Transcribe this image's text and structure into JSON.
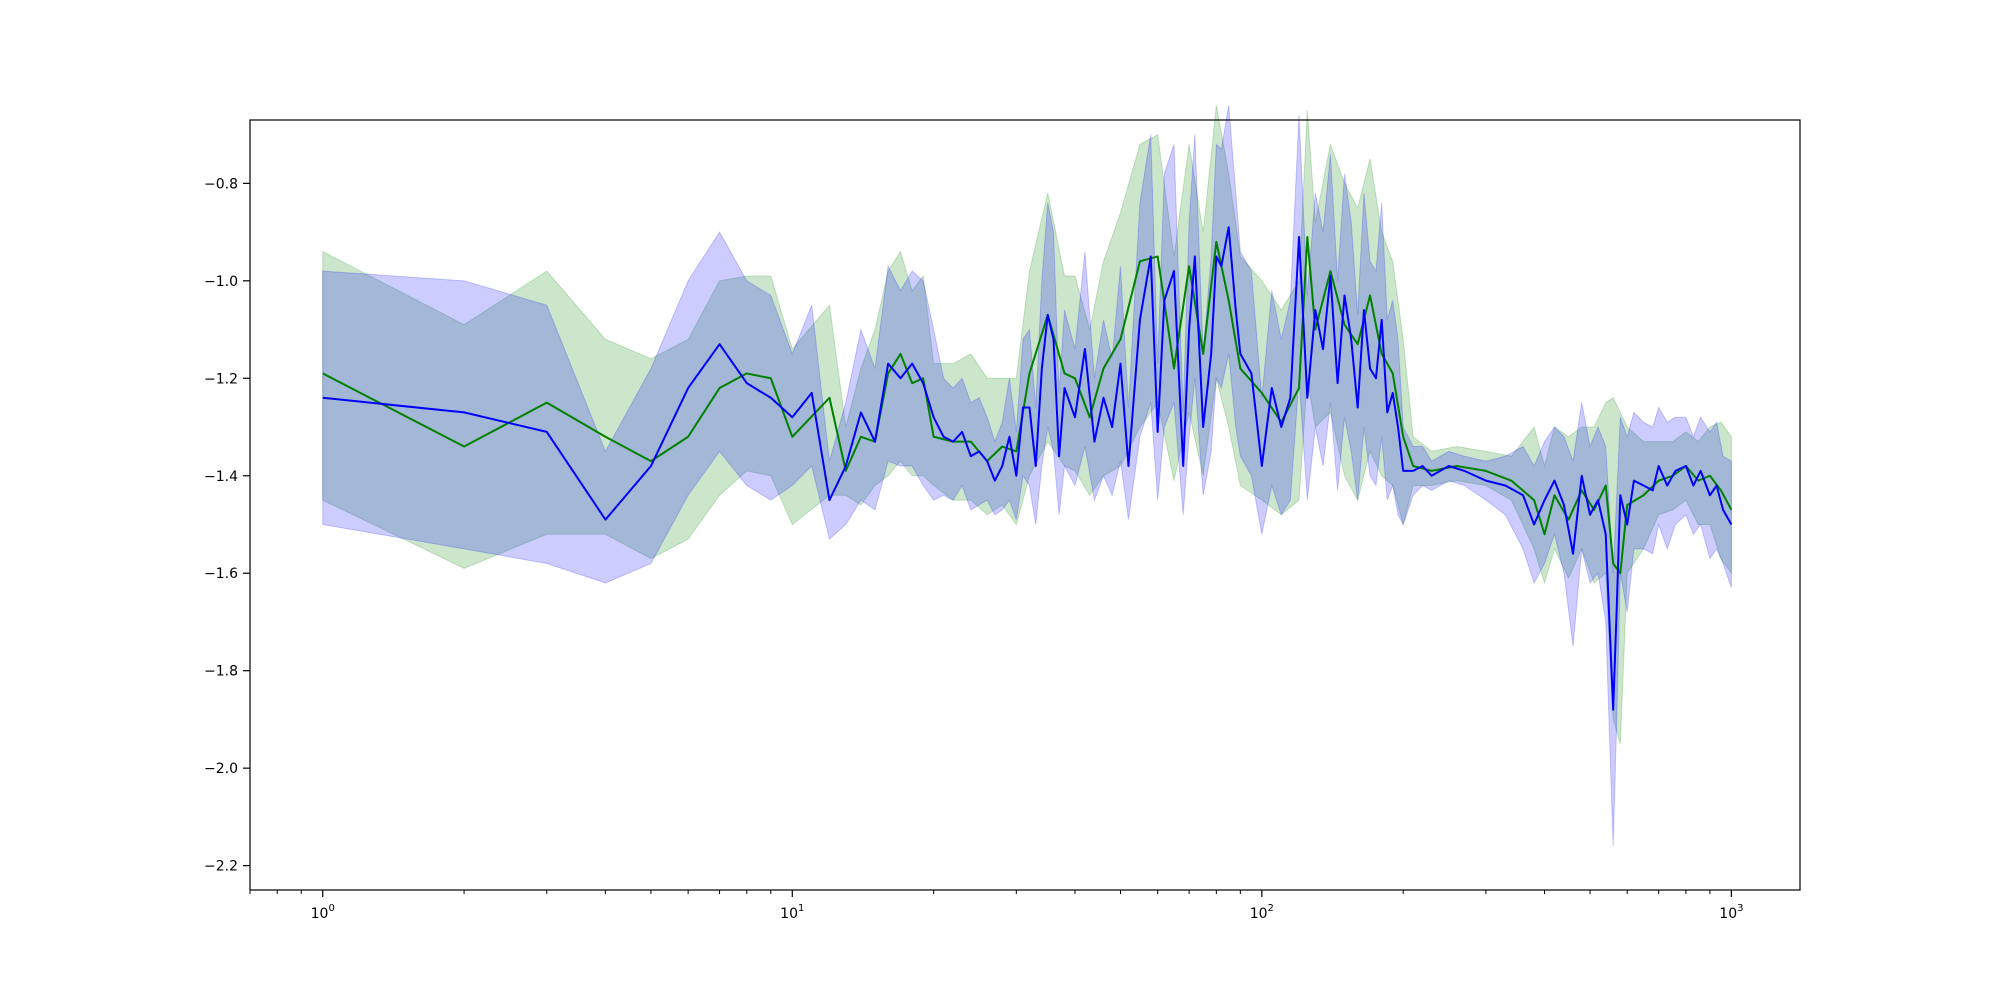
{
  "chart_data": {
    "type": "line",
    "title": "",
    "xlabel": "",
    "ylabel": "",
    "xscale": "log",
    "xlim": [
      0.7,
      1400
    ],
    "ylim": [
      -2.25,
      -0.67
    ],
    "grid": false,
    "x_ticks": [
      {
        "value": 1,
        "base": "10",
        "exp": "0"
      },
      {
        "value": 10,
        "base": "10",
        "exp": "1"
      },
      {
        "value": 100,
        "base": "10",
        "exp": "2"
      },
      {
        "value": 1000,
        "base": "10",
        "exp": "3"
      }
    ],
    "y_ticks": [
      {
        "value": -0.8,
        "label": "−0.8"
      },
      {
        "value": -1.0,
        "label": "−1.0"
      },
      {
        "value": -1.2,
        "label": "−1.2"
      },
      {
        "value": -1.4,
        "label": "−1.4"
      },
      {
        "value": -1.6,
        "label": "−1.6"
      },
      {
        "value": -1.8,
        "label": "−1.8"
      },
      {
        "value": -2.0,
        "label": "−2.0"
      },
      {
        "value": -2.2,
        "label": "−2.2"
      }
    ],
    "series": [
      {
        "color": "#008000",
        "band_color": "#008000",
        "band_opacity": 0.2,
        "x": [
          1,
          2,
          3,
          4,
          5,
          6,
          7,
          8,
          9,
          10,
          12,
          13,
          14,
          15,
          16,
          17,
          18,
          19,
          20,
          22,
          24,
          26,
          28,
          30,
          32,
          35,
          38,
          40,
          43,
          46,
          50,
          55,
          60,
          65,
          70,
          75,
          80,
          85,
          90,
          100,
          110,
          120,
          125,
          130,
          140,
          150,
          160,
          170,
          180,
          190,
          200,
          210,
          230,
          260,
          300,
          340,
          380,
          400,
          420,
          450,
          480,
          510,
          540,
          560,
          580,
          600,
          650,
          700,
          750,
          800,
          850,
          900,
          950,
          1000
        ],
        "y": [
          -1.19,
          -1.34,
          -1.25,
          -1.32,
          -1.37,
          -1.32,
          -1.22,
          -1.19,
          -1.2,
          -1.32,
          -1.24,
          -1.39,
          -1.32,
          -1.33,
          -1.19,
          -1.15,
          -1.21,
          -1.2,
          -1.32,
          -1.33,
          -1.33,
          -1.37,
          -1.34,
          -1.35,
          -1.19,
          -1.07,
          -1.19,
          -1.2,
          -1.28,
          -1.18,
          -1.12,
          -0.96,
          -0.95,
          -1.18,
          -0.97,
          -1.15,
          -0.92,
          -1.04,
          -1.18,
          -1.23,
          -1.29,
          -1.22,
          -0.91,
          -1.1,
          -0.98,
          -1.09,
          -1.13,
          -1.03,
          -1.15,
          -1.19,
          -1.32,
          -1.38,
          -1.39,
          -1.38,
          -1.39,
          -1.41,
          -1.45,
          -1.52,
          -1.44,
          -1.49,
          -1.43,
          -1.47,
          -1.42,
          -1.58,
          -1.6,
          -1.46,
          -1.44,
          -1.41,
          -1.4,
          -1.38,
          -1.41,
          -1.4,
          -1.43,
          -1.47
        ],
        "lower": [
          -1.45,
          -1.59,
          -1.52,
          -1.52,
          -1.57,
          -1.53,
          -1.44,
          -1.39,
          -1.4,
          -1.5,
          -1.44,
          -1.44,
          -1.46,
          -1.42,
          -1.4,
          -1.37,
          -1.4,
          -1.4,
          -1.42,
          -1.45,
          -1.45,
          -1.48,
          -1.46,
          -1.5,
          -1.4,
          -1.33,
          -1.38,
          -1.39,
          -1.44,
          -1.4,
          -1.38,
          -1.3,
          -1.25,
          -1.41,
          -1.27,
          -1.4,
          -1.2,
          -1.3,
          -1.42,
          -1.45,
          -1.48,
          -1.45,
          -1.2,
          -1.3,
          -1.27,
          -1.4,
          -1.45,
          -1.35,
          -1.4,
          -1.42,
          -1.5,
          -1.42,
          -1.42,
          -1.41,
          -1.42,
          -1.45,
          -1.55,
          -1.62,
          -1.55,
          -1.61,
          -1.55,
          -1.62,
          -1.6,
          -1.9,
          -1.95,
          -1.6,
          -1.55,
          -1.48,
          -1.47,
          -1.45,
          -1.5,
          -1.5,
          -1.57,
          -1.6
        ],
        "upper": [
          -0.94,
          -1.09,
          -0.98,
          -1.12,
          -1.16,
          -1.12,
          -1.0,
          -0.99,
          -0.99,
          -1.14,
          -1.05,
          -1.3,
          -1.18,
          -1.1,
          -0.98,
          -0.94,
          -1.02,
          -0.99,
          -1.17,
          -1.17,
          -1.15,
          -1.2,
          -1.2,
          -1.2,
          -0.98,
          -0.82,
          -0.99,
          -0.99,
          -1.1,
          -0.96,
          -0.86,
          -0.72,
          -0.7,
          -0.95,
          -0.72,
          -0.9,
          -0.64,
          -0.78,
          -0.95,
          -1.0,
          -1.06,
          -1.0,
          -0.65,
          -0.88,
          -0.72,
          -0.8,
          -0.85,
          -0.75,
          -0.9,
          -0.96,
          -1.12,
          -1.32,
          -1.35,
          -1.34,
          -1.35,
          -1.36,
          -1.3,
          -1.38,
          -1.3,
          -1.32,
          -1.3,
          -1.3,
          -1.25,
          -1.24,
          -1.27,
          -1.3,
          -1.33,
          -1.33,
          -1.33,
          -1.31,
          -1.33,
          -1.3,
          -1.29,
          -1.32
        ]
      },
      {
        "color": "#0000ff",
        "band_color": "#0000ff",
        "band_opacity": 0.2,
        "x": [
          1,
          2,
          3,
          4,
          5,
          6,
          7,
          8,
          9,
          10,
          11,
          12,
          13,
          14,
          15,
          16,
          17,
          18,
          19,
          20,
          21,
          22,
          23,
          24,
          25,
          26,
          27,
          28,
          29,
          30,
          31,
          32,
          33,
          34,
          35,
          36,
          37,
          38,
          40,
          42,
          44,
          46,
          48,
          50,
          52,
          55,
          58,
          60,
          62,
          65,
          68,
          70,
          72,
          75,
          78,
          80,
          82,
          85,
          88,
          90,
          95,
          100,
          105,
          110,
          115,
          120,
          125,
          130,
          135,
          140,
          145,
          150,
          155,
          160,
          165,
          170,
          175,
          180,
          185,
          190,
          195,
          200,
          210,
          220,
          230,
          250,
          270,
          300,
          330,
          360,
          380,
          400,
          420,
          440,
          460,
          480,
          500,
          520,
          540,
          560,
          570,
          580,
          600,
          620,
          650,
          680,
          700,
          730,
          760,
          800,
          830,
          860,
          900,
          930,
          960,
          1000
        ],
        "y": [
          -1.24,
          -1.27,
          -1.31,
          -1.49,
          -1.38,
          -1.22,
          -1.13,
          -1.21,
          -1.24,
          -1.28,
          -1.23,
          -1.45,
          -1.38,
          -1.27,
          -1.33,
          -1.17,
          -1.2,
          -1.17,
          -1.21,
          -1.28,
          -1.32,
          -1.33,
          -1.31,
          -1.36,
          -1.35,
          -1.37,
          -1.41,
          -1.38,
          -1.32,
          -1.4,
          -1.26,
          -1.26,
          -1.38,
          -1.18,
          -1.07,
          -1.12,
          -1.36,
          -1.22,
          -1.28,
          -1.14,
          -1.33,
          -1.24,
          -1.3,
          -1.17,
          -1.38,
          -1.08,
          -0.95,
          -1.31,
          -1.04,
          -0.98,
          -1.38,
          -1.1,
          -0.95,
          -1.3,
          -1.15,
          -0.95,
          -0.97,
          -0.89,
          -1.06,
          -1.15,
          -1.19,
          -1.38,
          -1.22,
          -1.3,
          -1.24,
          -0.91,
          -1.24,
          -1.06,
          -1.14,
          -0.99,
          -1.21,
          -1.03,
          -1.12,
          -1.26,
          -1.06,
          -1.18,
          -1.2,
          -1.08,
          -1.27,
          -1.23,
          -1.3,
          -1.39,
          -1.39,
          -1.38,
          -1.4,
          -1.38,
          -1.39,
          -1.41,
          -1.42,
          -1.44,
          -1.5,
          -1.45,
          -1.41,
          -1.46,
          -1.56,
          -1.4,
          -1.48,
          -1.45,
          -1.52,
          -1.88,
          -1.67,
          -1.44,
          -1.5,
          -1.41,
          -1.42,
          -1.43,
          -1.38,
          -1.42,
          -1.39,
          -1.38,
          -1.42,
          -1.39,
          -1.44,
          -1.42,
          -1.47,
          -1.5
        ],
        "lower": [
          -1.5,
          -1.55,
          -1.58,
          -1.62,
          -1.58,
          -1.44,
          -1.35,
          -1.42,
          -1.45,
          -1.42,
          -1.38,
          -1.53,
          -1.5,
          -1.45,
          -1.47,
          -1.37,
          -1.38,
          -1.38,
          -1.42,
          -1.45,
          -1.44,
          -1.45,
          -1.42,
          -1.47,
          -1.46,
          -1.45,
          -1.48,
          -1.47,
          -1.45,
          -1.49,
          -1.4,
          -1.42,
          -1.5,
          -1.38,
          -1.3,
          -1.35,
          -1.48,
          -1.38,
          -1.42,
          -1.34,
          -1.45,
          -1.4,
          -1.44,
          -1.37,
          -1.49,
          -1.32,
          -1.25,
          -1.45,
          -1.3,
          -1.25,
          -1.48,
          -1.32,
          -1.2,
          -1.44,
          -1.35,
          -1.2,
          -1.22,
          -1.15,
          -1.3,
          -1.36,
          -1.4,
          -1.52,
          -1.42,
          -1.48,
          -1.45,
          -1.2,
          -1.45,
          -1.3,
          -1.38,
          -1.25,
          -1.43,
          -1.28,
          -1.35,
          -1.45,
          -1.3,
          -1.4,
          -1.42,
          -1.32,
          -1.45,
          -1.42,
          -1.48,
          -1.5,
          -1.44,
          -1.42,
          -1.43,
          -1.41,
          -1.42,
          -1.45,
          -1.48,
          -1.55,
          -1.62,
          -1.58,
          -1.52,
          -1.6,
          -1.75,
          -1.55,
          -1.62,
          -1.6,
          -1.7,
          -2.16,
          -1.9,
          -1.6,
          -1.68,
          -1.55,
          -1.55,
          -1.56,
          -1.5,
          -1.55,
          -1.5,
          -1.48,
          -1.52,
          -1.5,
          -1.57,
          -1.55,
          -1.58,
          -1.63
        ],
        "upper": [
          -0.98,
          -1.0,
          -1.05,
          -1.35,
          -1.18,
          -1.0,
          -0.9,
          -1.0,
          -1.03,
          -1.15,
          -1.05,
          -1.37,
          -1.25,
          -1.1,
          -1.18,
          -0.97,
          -1.02,
          -0.98,
          -1.0,
          -1.1,
          -1.2,
          -1.22,
          -1.2,
          -1.25,
          -1.24,
          -1.28,
          -1.33,
          -1.29,
          -1.2,
          -1.31,
          -1.12,
          -1.1,
          -1.26,
          -1.0,
          -0.84,
          -0.9,
          -1.23,
          -1.06,
          -1.14,
          -0.94,
          -1.2,
          -1.08,
          -1.16,
          -0.97,
          -1.26,
          -0.84,
          -0.7,
          -1.17,
          -0.78,
          -0.72,
          -1.27,
          -0.88,
          -0.7,
          -1.15,
          -0.95,
          -0.72,
          -0.73,
          -0.64,
          -0.82,
          -0.94,
          -0.98,
          -1.24,
          -1.02,
          -1.12,
          -1.04,
          -0.66,
          -1.03,
          -0.82,
          -0.9,
          -0.74,
          -1.0,
          -0.78,
          -0.88,
          -1.07,
          -0.82,
          -0.96,
          -0.98,
          -0.84,
          -1.08,
          -1.04,
          -1.12,
          -1.3,
          -1.34,
          -1.34,
          -1.37,
          -1.35,
          -1.36,
          -1.37,
          -1.36,
          -1.34,
          -1.38,
          -1.33,
          -1.3,
          -1.32,
          -1.37,
          -1.25,
          -1.34,
          -1.3,
          -1.34,
          -1.6,
          -1.44,
          -1.28,
          -1.32,
          -1.27,
          -1.29,
          -1.3,
          -1.26,
          -1.29,
          -1.28,
          -1.28,
          -1.32,
          -1.28,
          -1.31,
          -1.29,
          -1.36,
          -1.37
        ]
      }
    ]
  }
}
